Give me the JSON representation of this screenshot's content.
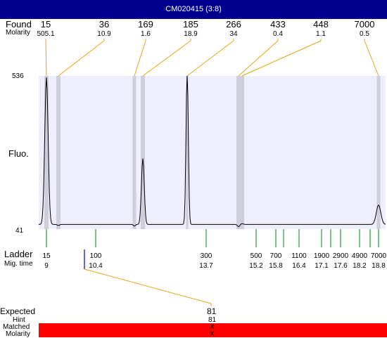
{
  "window": {
    "title": "CM020415 (3:8)"
  },
  "labels": {
    "found": "Found",
    "molarity": "Molarity",
    "fluo": "Fluo.",
    "ladder": "Ladder",
    "mig_time": "Mig. time",
    "expected": "Expected",
    "hint": "Hint",
    "matched": "Matched",
    "molarity_bottom": "Molarity"
  },
  "chart_data": {
    "type": "line",
    "ylabel": "Fluo.",
    "ylim": [
      41,
      536
    ],
    "y_tick_labels": [
      "536",
      "41"
    ],
    "found_peaks": [
      {
        "size": "15",
        "molarity": "505.1"
      },
      {
        "size": "36",
        "molarity": "10.9"
      },
      {
        "size": "169",
        "molarity": "1.6"
      },
      {
        "size": "185",
        "molarity": "18.9"
      },
      {
        "size": "266",
        "molarity": "34"
      },
      {
        "size": "433",
        "molarity": "0.4"
      },
      {
        "size": "448",
        "molarity": "1.1"
      },
      {
        "size": "7000",
        "molarity": "0.5"
      }
    ],
    "ladder": [
      {
        "size": "15",
        "mig_time": "9"
      },
      {
        "size": "100",
        "mig_time": "10.4"
      },
      {
        "size": "300",
        "mig_time": "13.7"
      },
      {
        "size": "500",
        "mig_time": "15.2"
      },
      {
        "size": "700",
        "mig_time": "15.8"
      },
      {
        "size": "1100",
        "mig_time": "16.4"
      },
      {
        "size": "1900",
        "mig_time": "17.1"
      },
      {
        "size": "2900",
        "mig_time": "17.6"
      },
      {
        "size": "4900",
        "mig_time": "18.2"
      },
      {
        "size": "7000",
        "mig_time": "18.8"
      }
    ],
    "extra_ladder_ticks": 3,
    "expected": {
      "value": "81",
      "hint": "81",
      "matched": "X",
      "molarity": "X"
    },
    "peak_heights": [
      505,
      12,
      10,
      235,
      536,
      8,
      18,
      80
    ],
    "colors": {
      "plot_bg": "#eeeefc",
      "band": "#cfcfdc",
      "trace": "#000000",
      "connector": "#e8a317",
      "ladder_tick": "#008000",
      "expected_tick": "#0000cc",
      "matched_bar": "#ff0000",
      "title_bar": "#00008b"
    }
  }
}
